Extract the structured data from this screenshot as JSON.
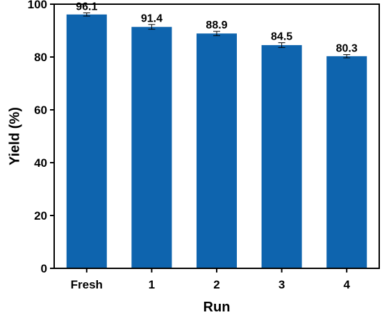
{
  "chart_data": {
    "type": "bar",
    "categories": [
      "Fresh",
      "1",
      "2",
      "3",
      "4"
    ],
    "values": [
      96.1,
      91.4,
      88.9,
      84.5,
      80.3
    ],
    "errors": [
      0.6,
      0.9,
      0.8,
      0.9,
      0.6
    ],
    "data_labels": [
      "96.1",
      "91.4",
      "88.9",
      "84.5",
      "80.3"
    ],
    "xlabel": "Run",
    "ylabel": "Yield (%)",
    "ylim": [
      0,
      100
    ],
    "yticks": [
      0,
      20,
      40,
      60,
      80,
      100
    ],
    "bar_color": "#0e64ae",
    "grid": false,
    "legend": "none"
  }
}
